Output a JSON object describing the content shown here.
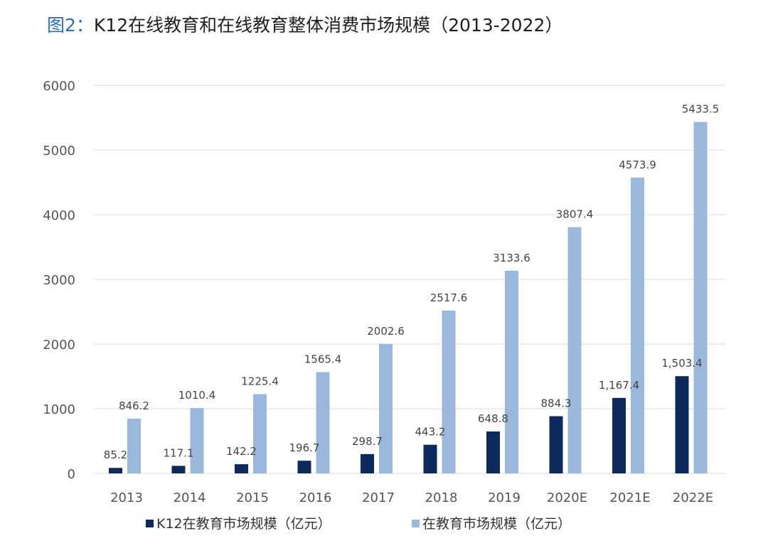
{
  "title": {
    "prefix": "图2：",
    "text": "K12在线教育和在线教育整体消费市场规模（2013-2022）"
  },
  "colors": {
    "series_dark": "#0e2a5c",
    "series_light": "#9ab8dc",
    "grid": "#d9d9d9",
    "title_prefix": "#2f6db5"
  },
  "chart_data": {
    "type": "bar",
    "title": "K12在线教育和在线教育整体消费市场规模（2013-2022）",
    "categories": [
      "2013",
      "2014",
      "2015",
      "2016",
      "2017",
      "2018",
      "2019",
      "2020E",
      "2021E",
      "2022E"
    ],
    "series": [
      {
        "name": "K12在教育市场规模（亿元）",
        "values": [
          85.2,
          117.1,
          142.2,
          196.7,
          298.7,
          443.2,
          648.8,
          884.3,
          1167.4,
          1503.4
        ],
        "labels": [
          "85.2",
          "117.1",
          "142.2",
          "196.7",
          "298.7",
          "443.2",
          "648.8",
          "884.3",
          "1,167.4",
          "1,503.4"
        ]
      },
      {
        "name": "在教育市场规模（亿元）",
        "values": [
          846.2,
          1010.4,
          1225.4,
          1565.4,
          2002.6,
          2517.6,
          3133.6,
          3807.4,
          4573.9,
          5433.5
        ],
        "labels": [
          "846.2",
          "1010.4",
          "1225.4",
          "1565.4",
          "2002.6",
          "2517.6",
          "3133.6",
          "3807.4",
          "4573.9",
          "5433.5"
        ]
      }
    ],
    "ylim": [
      0,
      6000
    ],
    "yticks": [
      "0",
      "1000",
      "2000",
      "3000",
      "4000",
      "5000",
      "6000"
    ],
    "xlabel": "",
    "ylabel": "",
    "grid": true,
    "legend_position": "bottom"
  }
}
